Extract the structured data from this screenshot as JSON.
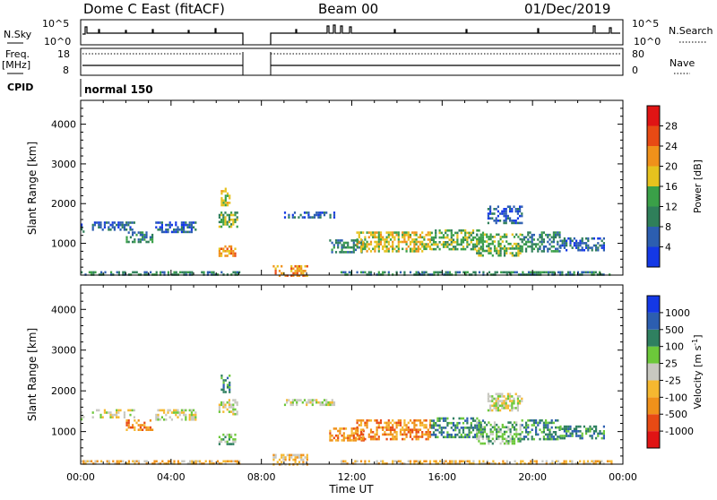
{
  "header": {
    "station": "Dome C East (fitACF)",
    "beam": "Beam 00",
    "date": "01/Dec/2019"
  },
  "panels": {
    "nsky_label": "N.Sky",
    "nsearch_label": "N.Search",
    "freq_label": "Freq.",
    "freq_unit": "[MHz]",
    "nave_label": "Nave",
    "cpid_label": "CPID",
    "cpid_value": "normal 150",
    "nsky_ticks": [
      "10^5",
      "10^0"
    ],
    "nsearch_ticks": [
      "10^5",
      "10^0"
    ],
    "freq_ticks": [
      "18",
      "8"
    ],
    "nave_ticks": [
      "80",
      "0"
    ]
  },
  "chart_data": [
    {
      "type": "heatmap",
      "name": "power",
      "xlabel": "",
      "ylabel": "Slant Range [km]",
      "y_ticks": [
        "1000",
        "2000",
        "3000",
        "4000"
      ],
      "ylim": [
        200,
        4600
      ],
      "xlim": [
        0,
        24
      ],
      "colorbar": {
        "label": "Power [dB]",
        "ticks": [
          "4",
          "8",
          "12",
          "16",
          "20",
          "24",
          "28"
        ],
        "colors": [
          "#1438e6",
          "#2c5eb0",
          "#2f7f5a",
          "#3aa048",
          "#e6c21e",
          "#f0911a",
          "#e84a14",
          "#e01414"
        ]
      },
      "regions": [
        {
          "t0": 0.0,
          "t1": 0.1,
          "r0": 1300,
          "r1": 1500,
          "level": 1
        },
        {
          "t0": 0.5,
          "t1": 2.4,
          "r0": 1350,
          "r1": 1550,
          "level": 1
        },
        {
          "t0": 2.0,
          "t1": 3.2,
          "r0": 1050,
          "r1": 1300,
          "level": 2
        },
        {
          "t0": 3.3,
          "t1": 5.1,
          "r0": 1300,
          "r1": 1550,
          "level": 1
        },
        {
          "t0": 6.1,
          "t1": 6.9,
          "r0": 1400,
          "r1": 1800,
          "level": 3
        },
        {
          "t0": 6.1,
          "t1": 6.8,
          "r0": 700,
          "r1": 950,
          "level": 5
        },
        {
          "t0": 6.2,
          "t1": 6.6,
          "r0": 1950,
          "r1": 2400,
          "level": 4
        },
        {
          "t0": 8.5,
          "t1": 10.0,
          "r0": 200,
          "r1": 450,
          "level": 5
        },
        {
          "t0": 9.0,
          "t1": 11.2,
          "r0": 1650,
          "r1": 1800,
          "level": 1
        },
        {
          "t0": 11.0,
          "t1": 12.5,
          "r0": 800,
          "r1": 1100,
          "level": 2
        },
        {
          "t0": 12.2,
          "t1": 15.5,
          "r0": 800,
          "r1": 1300,
          "level": 4
        },
        {
          "t0": 15.5,
          "t1": 17.8,
          "r0": 850,
          "r1": 1350,
          "level": 3
        },
        {
          "t0": 17.5,
          "t1": 19.5,
          "r0": 700,
          "r1": 1250,
          "level": 3
        },
        {
          "t0": 19.5,
          "t1": 21.2,
          "r0": 800,
          "r1": 1300,
          "level": 2
        },
        {
          "t0": 18.0,
          "t1": 19.5,
          "r0": 1500,
          "r1": 1950,
          "level": 1
        },
        {
          "t0": 21.2,
          "t1": 23.2,
          "r0": 850,
          "r1": 1150,
          "level": 1
        },
        {
          "t0": 0.0,
          "t1": 7.0,
          "r0": 220,
          "r1": 300,
          "level": 2
        },
        {
          "t0": 11.5,
          "t1": 23.5,
          "r0": 220,
          "r1": 300,
          "level": 2
        }
      ]
    },
    {
      "type": "heatmap",
      "name": "velocity",
      "xlabel": "Time UT",
      "ylabel": "Slant Range [km]",
      "x_ticks": [
        "00:00",
        "04:00",
        "08:00",
        "12:00",
        "16:00",
        "20:00",
        "00:00"
      ],
      "y_ticks": [
        "1000",
        "2000",
        "3000",
        "4000"
      ],
      "ylim": [
        200,
        4600
      ],
      "xlim": [
        0,
        24
      ],
      "colorbar": {
        "label": "Velocity [m s",
        "label_sup": "-1",
        "label_end": "]",
        "ticks": [
          "-1000",
          "-500",
          "-100",
          "-25",
          "25",
          "100",
          "500",
          "1000"
        ],
        "colors": [
          "#e01414",
          "#e84a14",
          "#f0911a",
          "#f5b830",
          "#c8c8c0",
          "#6cc83a",
          "#2f8060",
          "#2c5eb0",
          "#1438e6"
        ]
      },
      "regions": [
        {
          "t0": 0.0,
          "t1": 0.1,
          "r0": 1300,
          "r1": 1500,
          "level": 4
        },
        {
          "t0": 0.5,
          "t1": 2.4,
          "r0": 1350,
          "r1": 1550,
          "level": 4
        },
        {
          "t0": 2.0,
          "t1": 3.2,
          "r0": 1050,
          "r1": 1300,
          "level": 2
        },
        {
          "t0": 3.3,
          "t1": 5.1,
          "r0": 1300,
          "r1": 1550,
          "level": 4
        },
        {
          "t0": 6.1,
          "t1": 6.9,
          "r0": 1400,
          "r1": 1800,
          "level": 4
        },
        {
          "t0": 6.1,
          "t1": 6.8,
          "r0": 700,
          "r1": 950,
          "level": 5
        },
        {
          "t0": 6.2,
          "t1": 6.6,
          "r0": 1950,
          "r1": 2400,
          "level": 6
        },
        {
          "t0": 8.5,
          "t1": 10.0,
          "r0": 200,
          "r1": 450,
          "level": 3
        },
        {
          "t0": 9.0,
          "t1": 11.2,
          "r0": 1650,
          "r1": 1800,
          "level": 4
        },
        {
          "t0": 11.0,
          "t1": 12.5,
          "r0": 800,
          "r1": 1100,
          "level": 2
        },
        {
          "t0": 12.2,
          "t1": 15.5,
          "r0": 800,
          "r1": 1300,
          "level": 2
        },
        {
          "t0": 15.5,
          "t1": 17.8,
          "r0": 850,
          "r1": 1350,
          "level": 6
        },
        {
          "t0": 17.5,
          "t1": 19.5,
          "r0": 700,
          "r1": 1250,
          "level": 5
        },
        {
          "t0": 19.5,
          "t1": 21.2,
          "r0": 800,
          "r1": 1300,
          "level": 6
        },
        {
          "t0": 18.0,
          "t1": 19.5,
          "r0": 1500,
          "r1": 1950,
          "level": 4
        },
        {
          "t0": 21.2,
          "t1": 23.2,
          "r0": 850,
          "r1": 1150,
          "level": 6
        },
        {
          "t0": 0.0,
          "t1": 7.0,
          "r0": 220,
          "r1": 300,
          "level": 3
        },
        {
          "t0": 11.5,
          "t1": 23.5,
          "r0": 220,
          "r1": 300,
          "level": 3
        }
      ]
    }
  ]
}
